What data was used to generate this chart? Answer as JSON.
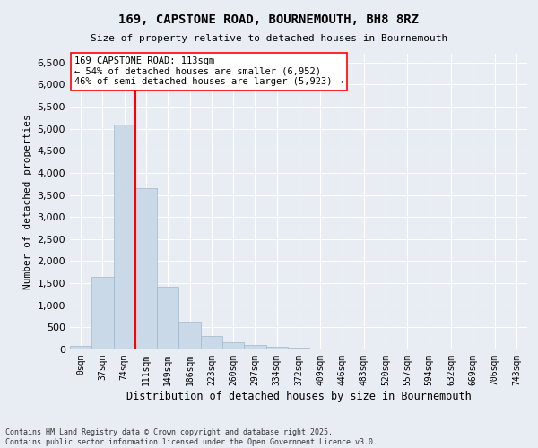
{
  "title_line1": "169, CAPSTONE ROAD, BOURNEMOUTH, BH8 8RZ",
  "title_line2": "Size of property relative to detached houses in Bournemouth",
  "xlabel": "Distribution of detached houses by size in Bournemouth",
  "ylabel": "Number of detached properties",
  "footer_line1": "Contains HM Land Registry data © Crown copyright and database right 2025.",
  "footer_line2": "Contains public sector information licensed under the Open Government Licence v3.0.",
  "bar_labels": [
    "0sqm",
    "37sqm",
    "74sqm",
    "111sqm",
    "149sqm",
    "186sqm",
    "223sqm",
    "260sqm",
    "297sqm",
    "334sqm",
    "372sqm",
    "409sqm",
    "446sqm",
    "483sqm",
    "520sqm",
    "557sqm",
    "594sqm",
    "632sqm",
    "669sqm",
    "706sqm",
    "743sqm"
  ],
  "bar_values": [
    75,
    1650,
    5100,
    3650,
    1430,
    620,
    310,
    155,
    105,
    70,
    50,
    30,
    15,
    8,
    4,
    2,
    1,
    1,
    0,
    0,
    0
  ],
  "bar_color": "#c9d9e8",
  "bar_edge_color": "#a0b8cc",
  "background_color": "#e8edf4",
  "grid_color": "#ffffff",
  "vline_color": "red",
  "annotation_text": "169 CAPSTONE ROAD: 113sqm\n← 54% of detached houses are smaller (6,952)\n46% of semi-detached houses are larger (5,923) →",
  "annotation_box_color": "white",
  "annotation_box_edge": "red",
  "ylim": [
    0,
    6700
  ],
  "yticks": [
    0,
    500,
    1000,
    1500,
    2000,
    2500,
    3000,
    3500,
    4000,
    4500,
    5000,
    5500,
    6000,
    6500
  ]
}
